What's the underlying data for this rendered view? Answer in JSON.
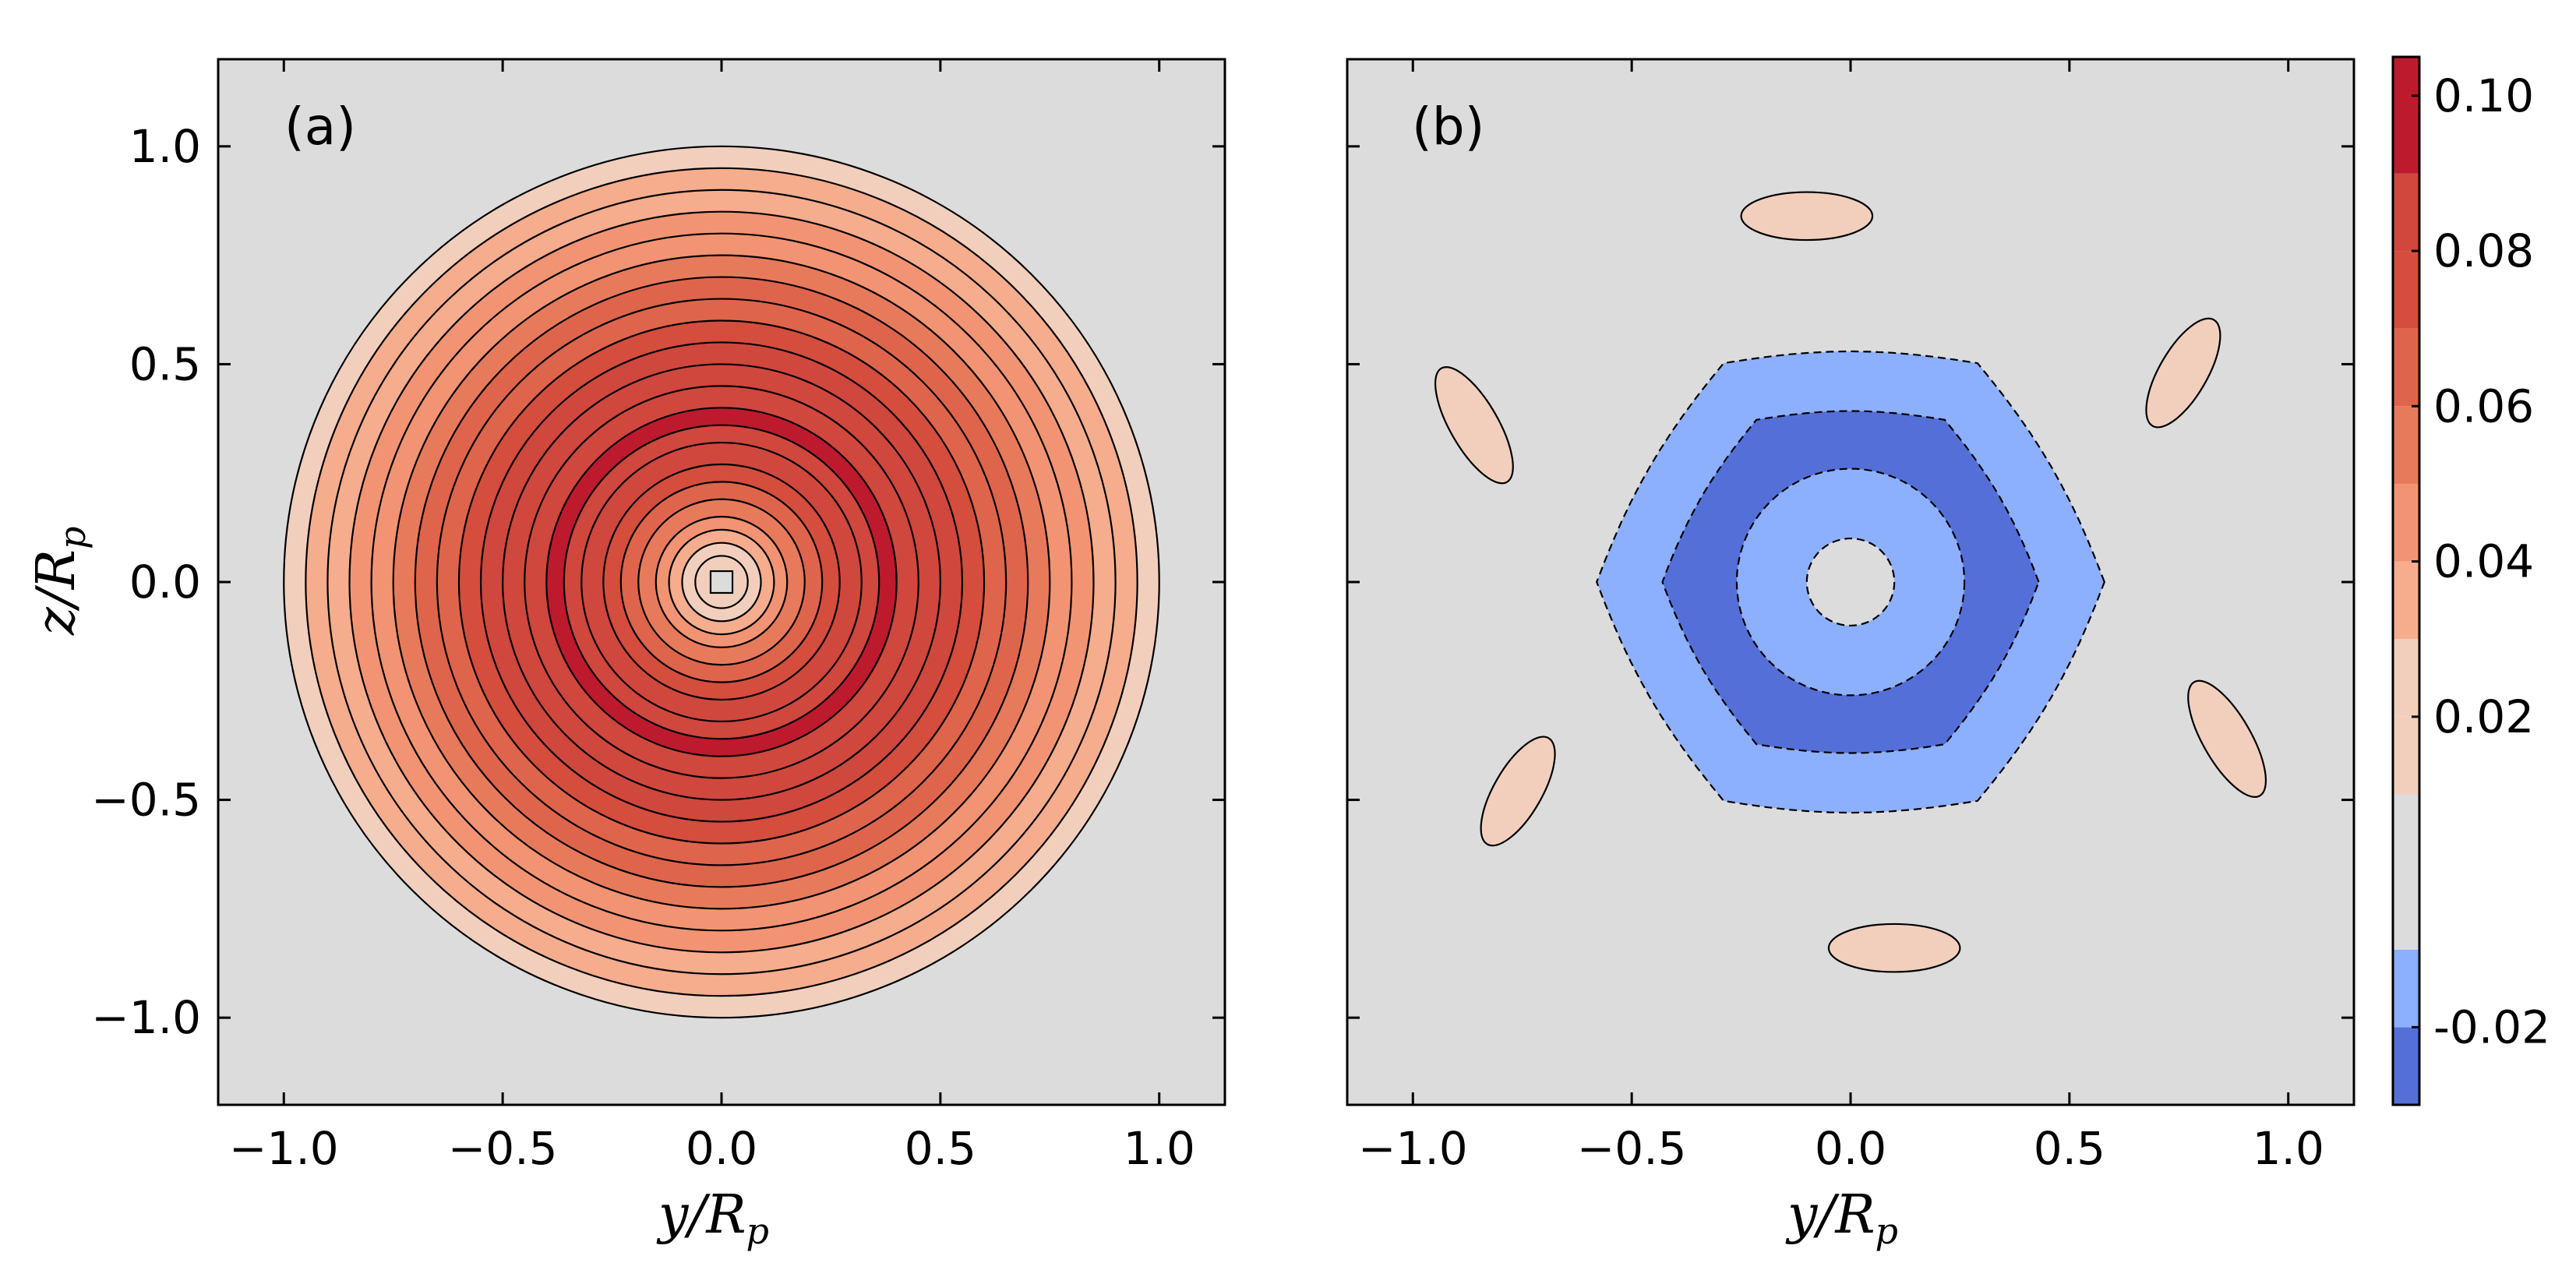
{
  "chart_data": [
    {
      "type": "heatmap",
      "subtype": "filled-contour",
      "panel_label": "(a)",
      "xlabel": "y/R_p",
      "ylabel": "z/R_p",
      "xlabel_parts": {
        "var": "y",
        "den": "R",
        "sub": "p"
      },
      "ylabel_parts": {
        "var": "z",
        "den": "R",
        "sub": "p"
      },
      "xlim": [
        -1.15,
        1.15
      ],
      "ylim": [
        -1.2,
        1.2
      ],
      "x_ticks": [
        -1.0,
        -0.5,
        0.0,
        0.5,
        1.0
      ],
      "x_tick_labels": [
        "−1.0",
        "−0.5",
        "0.0",
        "0.5",
        "1.0"
      ],
      "y_ticks": [
        1.0,
        0.5,
        0.0,
        -0.5,
        -1.0
      ],
      "y_tick_labels": [
        "1.0",
        "0.5",
        "0.0",
        "−0.5",
        "−1.0"
      ],
      "background_level": 0.0,
      "description_of_field": "radially symmetric positive field, zero outside r=1",
      "contour_rings": [
        {
          "r": 1.0,
          "level": 0.015
        },
        {
          "r": 0.95,
          "level": 0.035
        },
        {
          "r": 0.9,
          "level": 0.035
        },
        {
          "r": 0.85,
          "level": 0.045
        },
        {
          "r": 0.8,
          "level": 0.045
        },
        {
          "r": 0.75,
          "level": 0.055
        },
        {
          "r": 0.7,
          "level": 0.065
        },
        {
          "r": 0.65,
          "level": 0.065
        },
        {
          "r": 0.6,
          "level": 0.075
        },
        {
          "r": 0.55,
          "level": 0.085
        },
        {
          "r": 0.5,
          "level": 0.085
        },
        {
          "r": 0.45,
          "level": 0.085
        },
        {
          "r": 0.4,
          "level": 0.095
        },
        {
          "r": 0.36,
          "level": 0.085
        },
        {
          "r": 0.32,
          "level": 0.085
        },
        {
          "r": 0.27,
          "level": 0.075
        },
        {
          "r": 0.23,
          "level": 0.065
        },
        {
          "r": 0.19,
          "level": 0.055
        },
        {
          "r": 0.15,
          "level": 0.045
        },
        {
          "r": 0.12,
          "level": 0.035
        },
        {
          "r": 0.09,
          "level": 0.025
        },
        {
          "r": 0.06,
          "level": 0.015
        }
      ],
      "center_square_level": 0.0
    },
    {
      "type": "heatmap",
      "subtype": "filled-contour",
      "panel_label": "(b)",
      "xlabel": "y/R_p",
      "xlabel_parts": {
        "var": "y",
        "den": "R",
        "sub": "p"
      },
      "xlim": [
        -1.15,
        1.15
      ],
      "ylim": [
        -1.2,
        1.2
      ],
      "x_ticks": [
        -1.0,
        -0.5,
        0.0,
        0.5,
        1.0
      ],
      "x_tick_labels": [
        "−1.0",
        "−0.5",
        "0.0",
        "0.5",
        "1.0"
      ],
      "y_ticks": [
        1.0,
        0.5,
        0.0,
        -0.5,
        -1.0
      ],
      "background_level": 0.0,
      "description_of_field": "six-fold symmetric residual with negative central rings and six small positive lobes",
      "hexagon_regions": [
        {
          "outer_r": 0.58,
          "level": -0.015
        },
        {
          "outer_r": 0.43,
          "level": -0.025
        },
        {
          "outer_r": 0.26,
          "level": -0.015
        },
        {
          "outer_r": 0.1,
          "level": 0.0
        }
      ],
      "positive_lobes": [
        {
          "cx": -0.1,
          "cy": 0.84,
          "rx": 0.15,
          "ry": 0.055,
          "angle_deg": 0,
          "level": 0.015
        },
        {
          "cx": 0.76,
          "cy": 0.48,
          "rx": 0.14,
          "ry": 0.055,
          "angle_deg": 60,
          "level": 0.015
        },
        {
          "cx": 0.86,
          "cy": -0.36,
          "rx": 0.15,
          "ry": 0.055,
          "angle_deg": 120,
          "level": 0.015
        },
        {
          "cx": 0.1,
          "cy": -0.84,
          "rx": 0.15,
          "ry": 0.055,
          "angle_deg": 0,
          "level": 0.015
        },
        {
          "cx": -0.76,
          "cy": -0.48,
          "rx": 0.14,
          "ry": 0.055,
          "angle_deg": 60,
          "level": 0.015
        },
        {
          "cx": -0.86,
          "cy": 0.36,
          "rx": 0.15,
          "ry": 0.055,
          "angle_deg": 120,
          "level": 0.015
        }
      ]
    }
  ],
  "colorbar": {
    "min": -0.03,
    "max": 0.105,
    "levels": [
      {
        "from": -0.03,
        "to": -0.02,
        "color": "#5470d8"
      },
      {
        "from": -0.02,
        "to": -0.01,
        "color": "#8db0fe"
      },
      {
        "from": -0.01,
        "to": 0.01,
        "color": "#dcdcdc"
      },
      {
        "from": 0.01,
        "to": 0.02,
        "color": "#f2cfbd"
      },
      {
        "from": 0.02,
        "to": 0.03,
        "color": "#f2cfbd"
      },
      {
        "from": 0.03,
        "to": 0.04,
        "color": "#f5ad8e"
      },
      {
        "from": 0.04,
        "to": 0.05,
        "color": "#f29473"
      },
      {
        "from": 0.05,
        "to": 0.06,
        "color": "#e87a5c"
      },
      {
        "from": 0.06,
        "to": 0.07,
        "color": "#de654b"
      },
      {
        "from": 0.07,
        "to": 0.08,
        "color": "#d44d3d"
      },
      {
        "from": 0.08,
        "to": 0.09,
        "color": "#d0473d"
      },
      {
        "from": 0.09,
        "to": 0.105,
        "color": "#bd1a2e"
      }
    ],
    "ticks": [
      0.1,
      0.08,
      0.06,
      0.04,
      0.02,
      -0.02
    ],
    "tick_labels": [
      "0.10",
      "0.08",
      "0.06",
      "0.04",
      "0.02",
      "-0.02"
    ]
  },
  "colors": {
    "background": "#dcdcdc",
    "neg_dark": "#5470d8",
    "neg_light": "#8db0fe",
    "pos_1": "#f2cfbd",
    "pos_2": "#f5ad8e",
    "pos_3": "#f29473",
    "pos_4": "#e87a5c",
    "pos_5": "#de654b",
    "pos_6": "#d0473d",
    "pos_max": "#bd1a2e"
  }
}
